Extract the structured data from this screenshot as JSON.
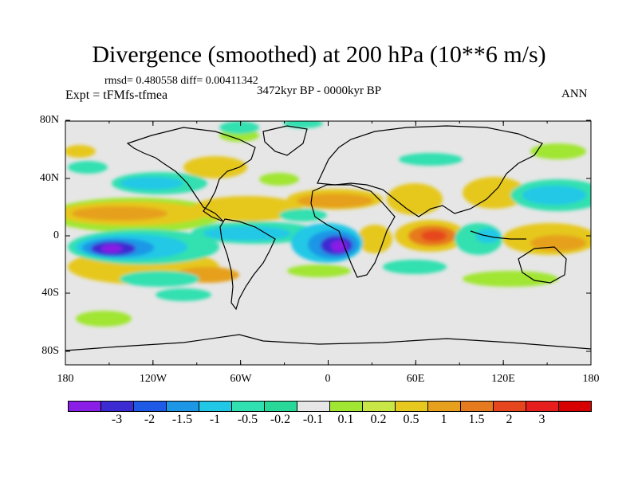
{
  "title": "Divergence (smoothed) at 200 hPa (10**6 m/s)",
  "stats": "rmsd= 0.480558 diff= 0.00411342",
  "experiment": "Expt = tFMfs-tfmea",
  "period": "3472kyr BP - 0000kyr BP",
  "season": "ANN",
  "axes": {
    "lon_labels": [
      "180",
      "120W",
      "60W",
      "0",
      "60E",
      "120E",
      "180"
    ],
    "lat_labels": [
      "80N",
      "40N",
      "0",
      "40S",
      "80S"
    ]
  },
  "colorbar": {
    "colors": [
      "#8a1ee6",
      "#3c2ad2",
      "#1e5ae6",
      "#1e96e6",
      "#20c8e6",
      "#30e0b0",
      "#28d898",
      "#e6e6e6",
      "#a0e632",
      "#c8e646",
      "#e6c81e",
      "#e6a01e",
      "#e67a1e",
      "#e6461e",
      "#e61e1e",
      "#d70000"
    ],
    "labels": [
      "-3",
      "-2",
      "-1.5",
      "-1",
      "-0.5",
      "-0.2",
      "-0.1",
      "0.1",
      "0.2",
      "0.5",
      "1",
      "1.5",
      "2",
      "3"
    ]
  }
}
